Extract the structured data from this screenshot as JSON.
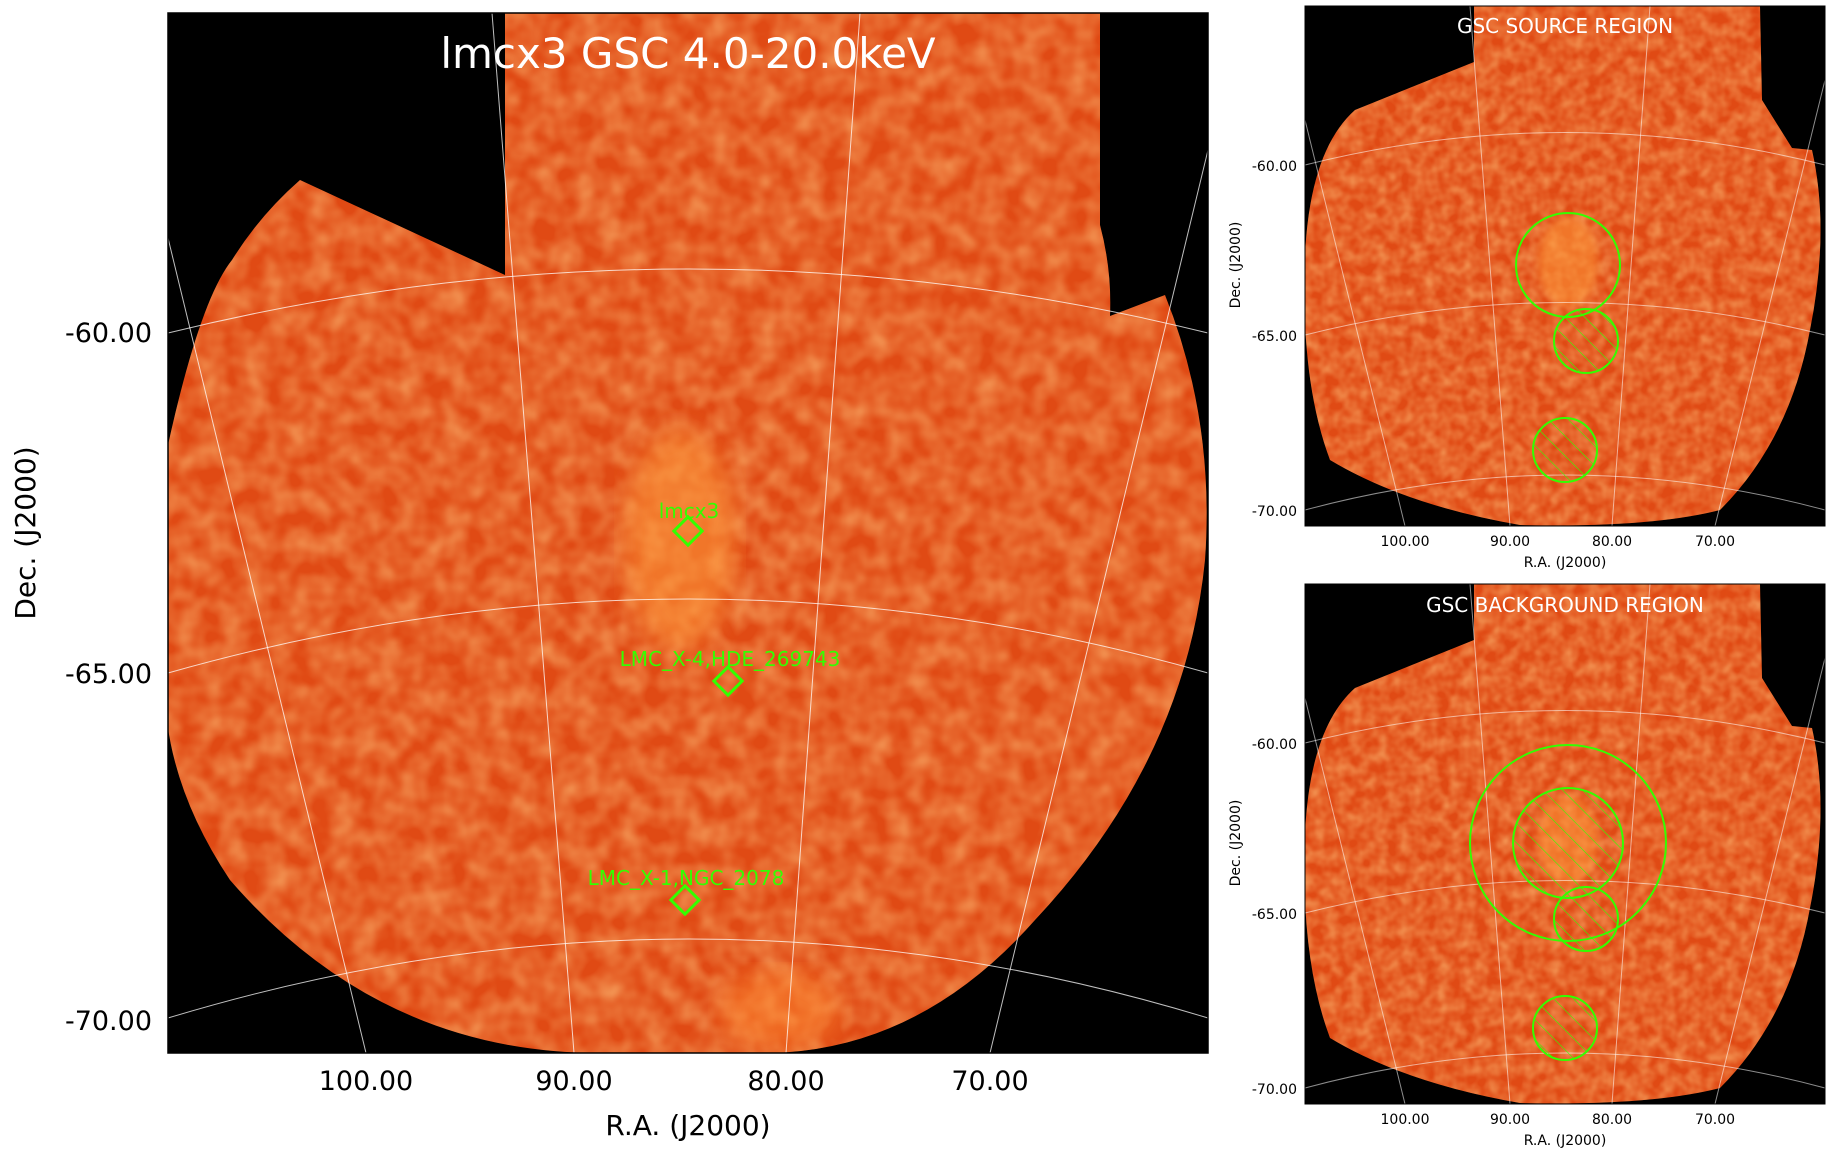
{
  "main_panel": {
    "title": "lmcx3 GSC 4.0-20.0keV",
    "xlabel": "R.A. (J2000)",
    "ylabel": "Dec. (J2000)",
    "ra_ticks": [
      "100.00",
      "90.00",
      "80.00",
      "70.00"
    ],
    "dec_ticks": [
      "-60.00",
      "-65.00",
      "-70.00"
    ],
    "sources": [
      {
        "label": "lmcx3"
      },
      {
        "label": "LMC_X-4,HDE_269743"
      },
      {
        "label": "LMC_X-1,NGC_2078"
      }
    ]
  },
  "source_panel": {
    "title": "GSC SOURCE REGION",
    "xlabel": "R.A. (J2000)",
    "ylabel": "Dec. (J2000)",
    "ra_ticks": [
      "100.00",
      "90.00",
      "80.00",
      "70.00"
    ],
    "dec_ticks": [
      "-60.00",
      "-65.00",
      "-70.00"
    ]
  },
  "background_panel": {
    "title": "GSC BACKGROUND REGION",
    "xlabel": "R.A. (J2000)",
    "ylabel": "Dec. (J2000)",
    "ra_ticks": [
      "100.00",
      "90.00",
      "80.00",
      "70.00"
    ],
    "dec_ticks": [
      "-60.00",
      "-65.00",
      "-70.00"
    ]
  },
  "colors": {
    "image_base": "#e04a14",
    "marker": "#33ff00",
    "grid": "#ffffff",
    "background": "#000000"
  }
}
